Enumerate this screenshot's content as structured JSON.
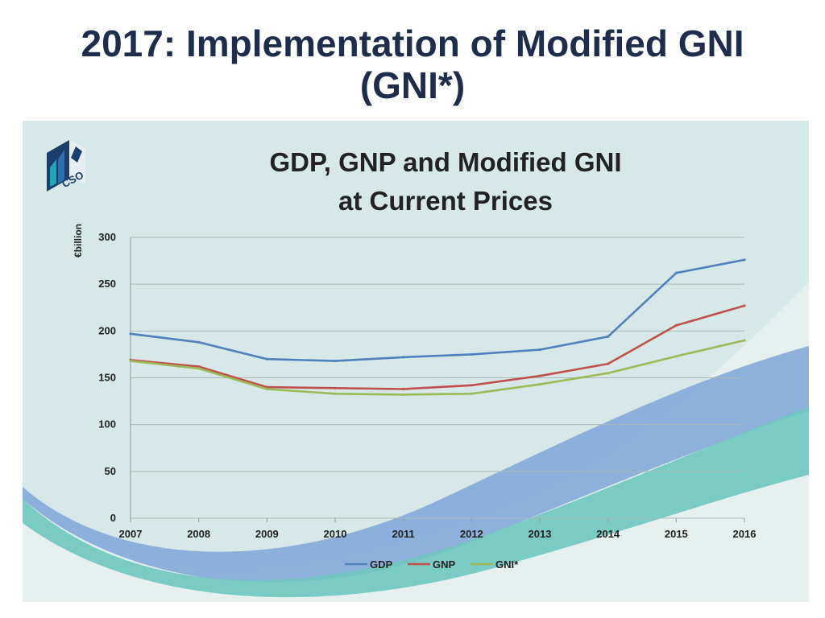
{
  "slide": {
    "title_line1": "2017:  Implementation of Modified GNI",
    "title_line2": "(GNI*)"
  },
  "logo": {
    "text": "CSO",
    "icon": "cso-logo-icon"
  },
  "chart_data": {
    "type": "line",
    "title_line1": "GDP, GNP and Modified GNI",
    "title_line2": "at Current Prices",
    "ylabel": "€billion",
    "xlabel": "",
    "categories": [
      "2007",
      "2008",
      "2009",
      "2010",
      "2011",
      "2012",
      "2013",
      "2014",
      "2015",
      "2016"
    ],
    "ylim": [
      0,
      300
    ],
    "yticks": [
      "0",
      "50",
      "100",
      "150",
      "200",
      "250",
      "300"
    ],
    "grid": true,
    "legend_position": "bottom",
    "series": [
      {
        "name": "GDP",
        "color": "#4f81bd",
        "values": [
          197,
          188,
          170,
          168,
          172,
          175,
          180,
          194,
          262,
          276
        ]
      },
      {
        "name": "GNP",
        "color": "#c0504d",
        "values": [
          169,
          162,
          140,
          139,
          138,
          142,
          152,
          165,
          206,
          227
        ]
      },
      {
        "name": "GNI*",
        "color": "#9bbb59",
        "values": [
          168,
          160,
          138,
          133,
          132,
          133,
          143,
          155,
          173,
          190
        ]
      }
    ]
  }
}
